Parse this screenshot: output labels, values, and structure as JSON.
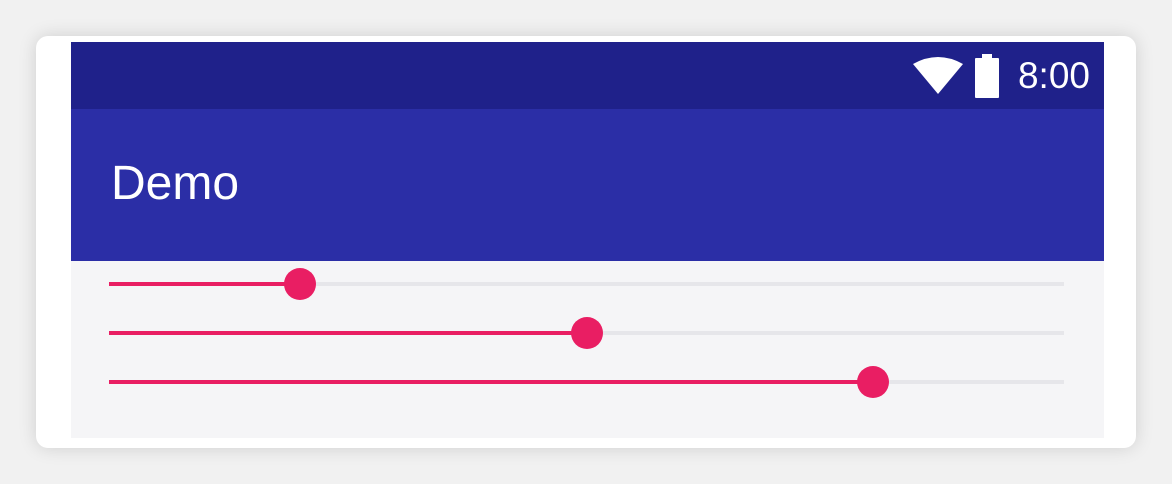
{
  "status_bar": {
    "time": "8:00",
    "icons": [
      "wifi-icon",
      "battery-icon"
    ]
  },
  "app_bar": {
    "title": "Demo"
  },
  "sliders": [
    {
      "name": "slider-1",
      "value": 0.2
    },
    {
      "name": "slider-2",
      "value": 0.5
    },
    {
      "name": "slider-3",
      "value": 0.8
    }
  ],
  "colors": {
    "status_bar": "#1f218a",
    "app_bar": "#2b2ea6",
    "accent": "#e91e63",
    "content_bg": "#f5f5f7",
    "track": "#e6e6ea"
  }
}
